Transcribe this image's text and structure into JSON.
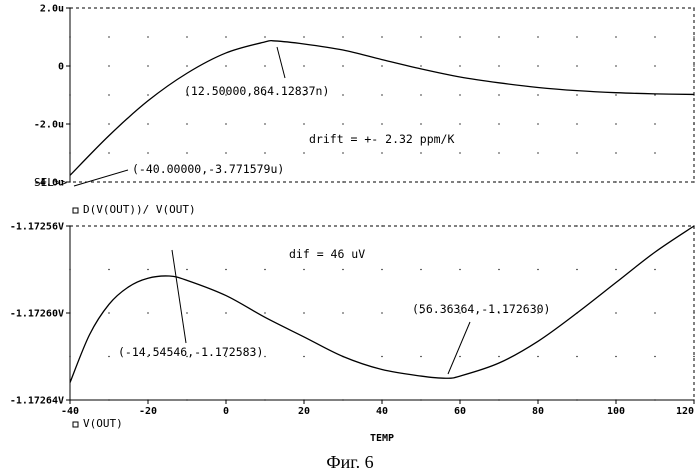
{
  "caption": "Фиг. 6",
  "x_axis": {
    "label": "TEMP",
    "ticks": [
      "-40",
      "-20",
      "0",
      "20",
      "40",
      "60",
      "80",
      "100",
      "120"
    ],
    "range": [
      -40,
      120
    ]
  },
  "chart_data": [
    {
      "type": "line",
      "series": [
        {
          "name": "D(V(OUT))/ V(OUT)",
          "x": [
            -40,
            -30,
            -20,
            -10,
            0,
            10,
            12.5,
            20,
            30,
            40,
            50,
            60,
            70,
            80,
            90,
            100,
            110,
            120
          ],
          "y": [
            -3.77,
            -2.4,
            -1.2,
            -0.25,
            0.45,
            0.83,
            0.864,
            0.76,
            0.55,
            0.22,
            -0.1,
            -0.38,
            -0.58,
            -0.74,
            -0.85,
            -0.92,
            -0.96,
            -0.98
          ],
          "unit": "u"
        }
      ],
      "ylim": [
        -4.0,
        2.0
      ],
      "y_ticks": [
        "2.0u",
        "0",
        "-2.0u",
        "-4.0u"
      ],
      "selection_marker": "SEL>>",
      "annotations": [
        {
          "text": "(12.50000,864.12837n)"
        },
        {
          "text": "(-40.00000,-3.771579u)"
        },
        {
          "text": "drift = +- 2.32 ppm/K"
        }
      ]
    },
    {
      "type": "line",
      "series": [
        {
          "name": "V(OUT)",
          "x": [
            -40,
            -35,
            -30,
            -25,
            -20,
            -14.54546,
            -10,
            0,
            10,
            20,
            30,
            40,
            50,
            56.36364,
            60,
            70,
            80,
            90,
            100,
            110,
            120
          ],
          "y": [
            -1.172632,
            -1.17261,
            -1.172596,
            -1.172588,
            -1.172584,
            -1.172583,
            -1.172585,
            -1.172592,
            -1.172602,
            -1.172611,
            -1.17262,
            -1.172626,
            -1.172629,
            -1.17263,
            -1.172629,
            -1.172623,
            -1.172613,
            -1.1726,
            -1.172586,
            -1.172572,
            -1.17256
          ],
          "unit": "V"
        }
      ],
      "ylim": [
        -1.17264,
        -1.17256
      ],
      "y_ticks": [
        "-1.17256V",
        "-1.17260V",
        "-1.17264V"
      ],
      "annotations": [
        {
          "text": "(-14.54546,-1.172583)"
        },
        {
          "text": "(56.36364,-1.172630)"
        },
        {
          "text": "dif = 46 uV"
        }
      ]
    }
  ]
}
